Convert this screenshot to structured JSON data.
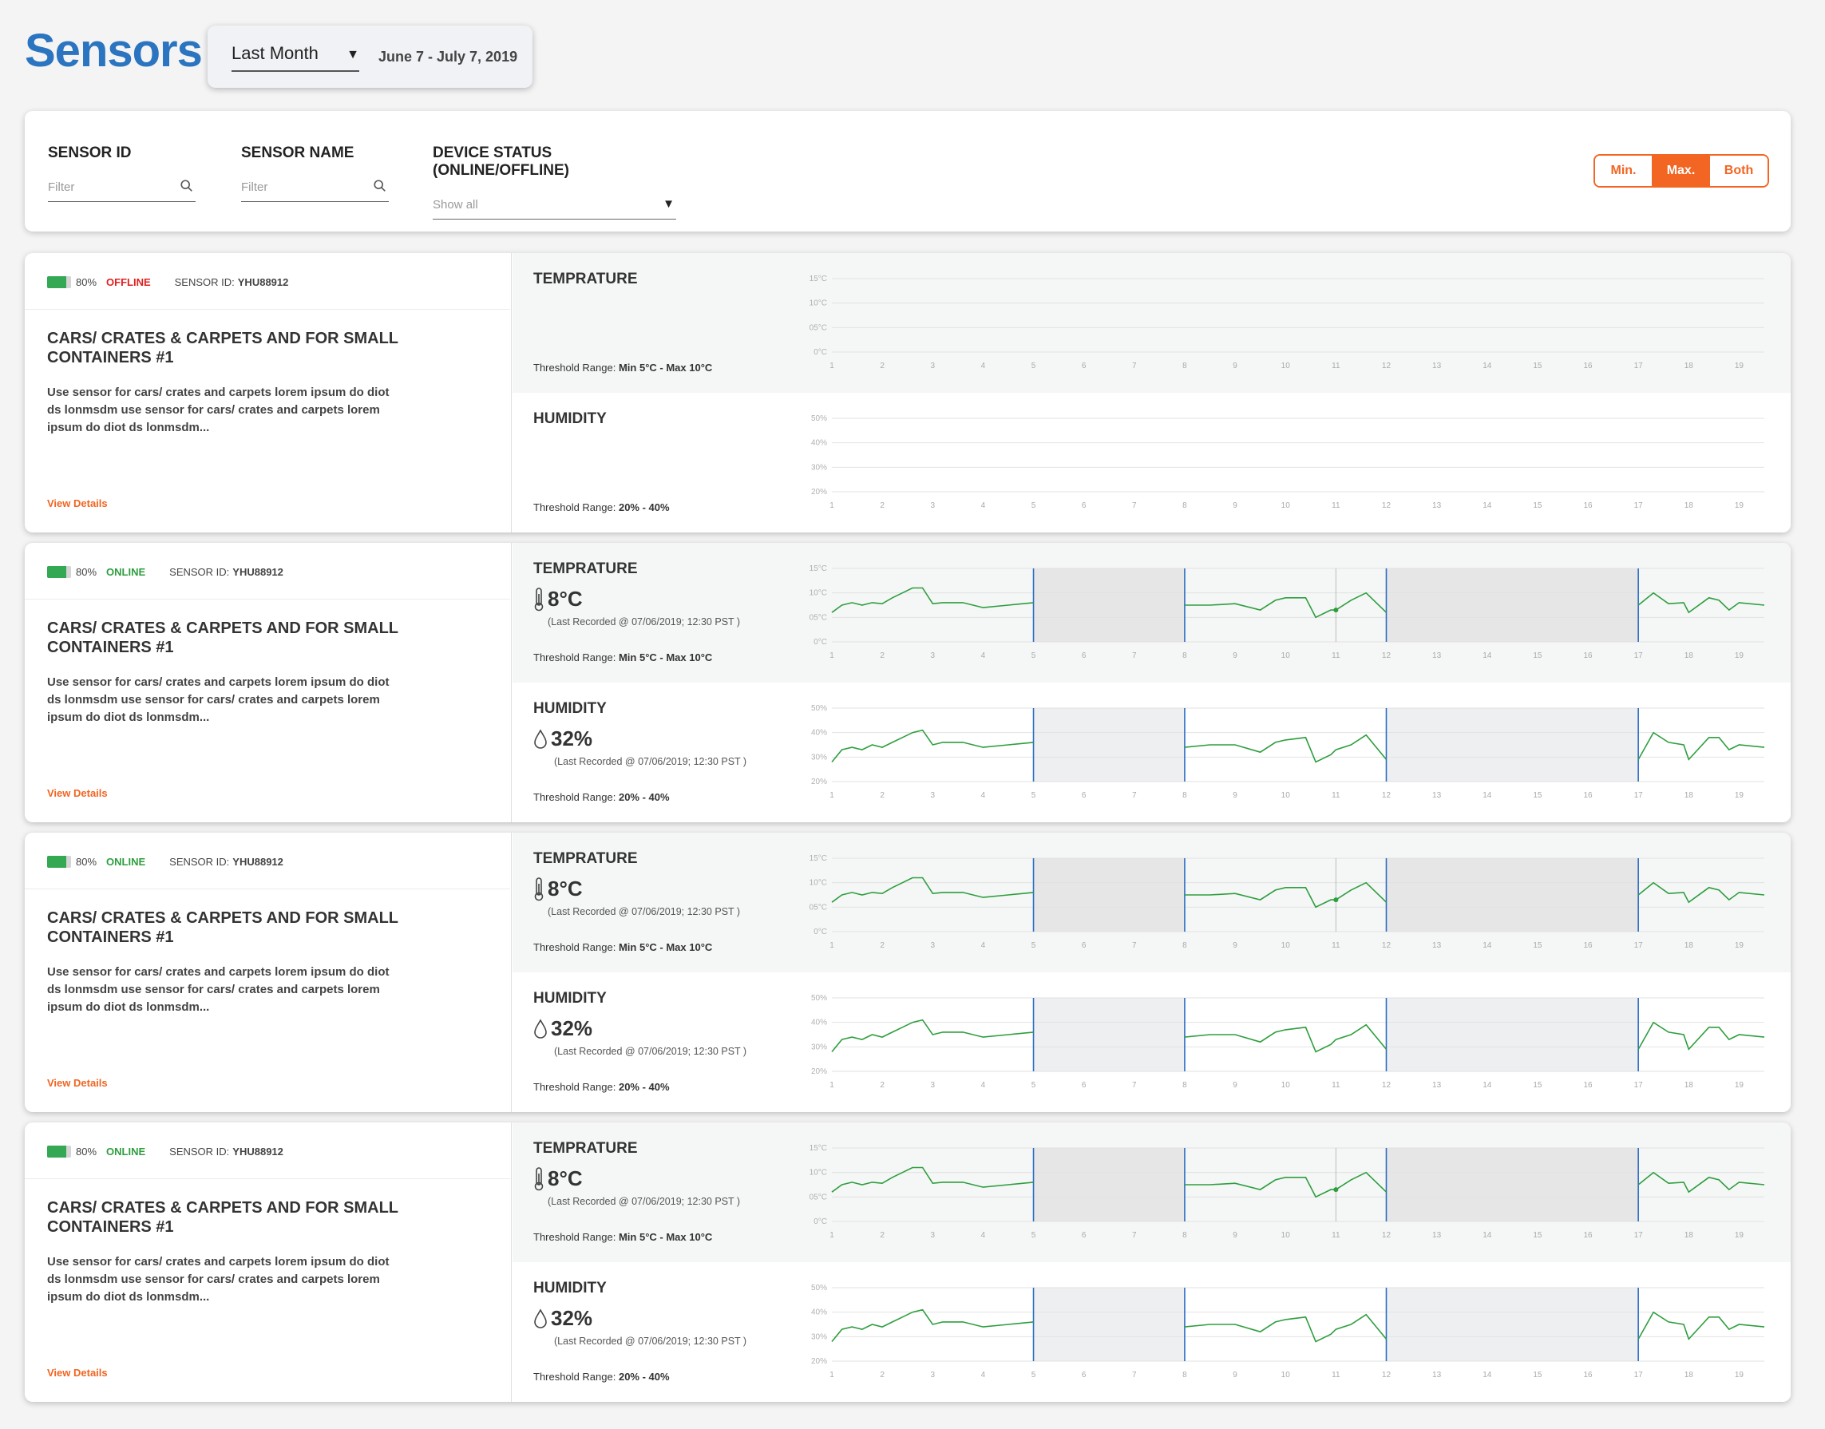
{
  "page": {
    "title": "Sensors"
  },
  "range": {
    "selected": "Last Month",
    "dates": "June 7 - July 7, 2019"
  },
  "filters": {
    "sensor_id": {
      "label": "SENSOR ID",
      "placeholder": "Filter"
    },
    "sensor_name": {
      "label": "SENSOR NAME",
      "placeholder": "Filter"
    },
    "device_status": {
      "label": "DEVICE STATUS (ONLINE/OFFLINE)",
      "value": "Show all"
    }
  },
  "toggle": {
    "options": [
      "Min.",
      "Max.",
      "Both"
    ],
    "active": "Max.",
    "accent_color": "#f26522"
  },
  "colors": {
    "online": "#2e9e3e",
    "offline": "#e02020",
    "line": "#2e9e3e",
    "marker": "#2b6cc4",
    "title": "#2b74c0"
  },
  "x_ticks": [
    "1",
    "2",
    "3",
    "4",
    "5",
    "6",
    "7",
    "8",
    "9",
    "10",
    "11",
    "12",
    "13",
    "14",
    "15",
    "16",
    "17",
    "18",
    "19"
  ],
  "temp_ticks": [
    "15°C",
    "10°C",
    "05°C",
    "0°C"
  ],
  "hum_ticks": [
    "50%",
    "40%",
    "30%",
    "20%"
  ],
  "sensors": [
    {
      "battery_pct": "80%",
      "battery_level": 0.8,
      "status": "OFFLINE",
      "sid_label": "SENSOR ID:",
      "sid_value": "YHU88912",
      "title": "CARS/ CRATES & CARPETS AND FOR SMALL CONTAINERS #1",
      "description": "Use sensor for cars/ crates and carpets lorem ipsum do diot ds lonmsdm use sensor for cars/ crates and carpets lorem ipsum do diot ds lonmsdm...",
      "link": "View Details",
      "temp": {
        "label": "TEMPRATURE",
        "value": "",
        "recorded": "",
        "threshold_label": "Threshold Range:",
        "threshold_value": "Min 5°C - Max 10°C"
      },
      "hum": {
        "label": "HUMIDITY",
        "value": "",
        "recorded": "",
        "threshold_label": "Threshold Range:",
        "threshold_value": "20% - 40%"
      },
      "has_data": false
    },
    {
      "battery_pct": "80%",
      "battery_level": 0.8,
      "status": "ONLINE",
      "sid_label": "SENSOR ID:",
      "sid_value": "YHU88912",
      "title": "CARS/ CRATES & CARPETS AND FOR SMALL CONTAINERS #1",
      "description": "Use sensor for cars/ crates and carpets lorem ipsum do diot ds lonmsdm use sensor for cars/ crates and carpets lorem ipsum do diot ds lonmsdm...",
      "link": "View Details",
      "temp": {
        "label": "TEMPRATURE",
        "value": "8°C",
        "recorded": "(Last Recorded @ 07/06/2019; 12:30 PST )",
        "threshold_label": "Threshold Range:",
        "threshold_value": "Min 5°C - Max 10°C"
      },
      "hum": {
        "label": "HUMIDITY",
        "value": "32%",
        "recorded": "(Last Recorded @ 07/06/2019; 12:30 PST )",
        "threshold_label": "Threshold Range:",
        "threshold_value": "20% - 40%"
      },
      "has_data": true
    },
    {
      "battery_pct": "80%",
      "battery_level": 0.8,
      "status": "ONLINE",
      "sid_label": "SENSOR ID:",
      "sid_value": "YHU88912",
      "title": "CARS/ CRATES & CARPETS AND FOR SMALL CONTAINERS #1",
      "description": "Use sensor for cars/ crates and carpets lorem ipsum do diot ds lonmsdm use sensor for cars/ crates and carpets lorem ipsum do diot ds lonmsdm...",
      "link": "View Details",
      "temp": {
        "label": "TEMPRATURE",
        "value": "8°C",
        "recorded": "(Last Recorded @ 07/06/2019; 12:30 PST )",
        "threshold_label": "Threshold Range:",
        "threshold_value": "Min 5°C - Max 10°C"
      },
      "hum": {
        "label": "HUMIDITY",
        "value": "32%",
        "recorded": "(Last Recorded @ 07/06/2019; 12:30 PST )",
        "threshold_label": "Threshold Range:",
        "threshold_value": "20% - 40%"
      },
      "has_data": true
    },
    {
      "battery_pct": "80%",
      "battery_level": 0.8,
      "status": "ONLINE",
      "sid_label": "SENSOR ID:",
      "sid_value": "YHU88912",
      "title": "CARS/ CRATES & CARPETS AND FOR SMALL CONTAINERS #1",
      "description": "Use sensor for cars/ crates and carpets lorem ipsum do diot ds lonmsdm use sensor for cars/ crates and carpets lorem ipsum do diot ds lonmsdm...",
      "link": "View Details",
      "temp": {
        "label": "TEMPRATURE",
        "value": "8°C",
        "recorded": "(Last Recorded @ 07/06/2019; 12:30 PST )",
        "threshold_label": "Threshold Range:",
        "threshold_value": "Min 5°C - Max 10°C"
      },
      "hum": {
        "label": "HUMIDITY",
        "value": "32%",
        "recorded": "(Last Recorded @ 07/06/2019; 12:30 PST )",
        "threshold_label": "Threshold Range:",
        "threshold_value": "20% - 40%"
      },
      "has_data": true
    }
  ],
  "chart_data": [
    {
      "type": "line",
      "ylabel": "Temperature",
      "ylim": [
        0,
        15
      ],
      "x_range": [
        1,
        19.5
      ],
      "gap_ranges": [
        [
          5,
          8
        ],
        [
          12,
          17
        ]
      ],
      "highlight_x": 11,
      "x": [
        1,
        1.2,
        1.4,
        1.6,
        1.8,
        2,
        2.2,
        2.4,
        2.6,
        2.8,
        3,
        3.2,
        3.4,
        3.6,
        4,
        4.5,
        5,
        8,
        8.5,
        9,
        9.5,
        9.8,
        10,
        10.4,
        10.6,
        10.9,
        11,
        11.3,
        11.6,
        12,
        17,
        17.3,
        17.6,
        17.9,
        18,
        18.4,
        18.6,
        18.8,
        19,
        19.5
      ],
      "values": [
        6,
        7.5,
        8,
        7.5,
        8,
        7.8,
        9,
        10,
        11,
        11,
        7.8,
        8,
        8,
        8,
        7,
        7.5,
        8,
        7.5,
        7.5,
        7.8,
        6.5,
        8.5,
        9,
        9,
        5,
        6.5,
        6.5,
        8.5,
        10,
        6,
        7.5,
        10,
        7.8,
        8,
        6,
        9,
        8.5,
        6.5,
        8,
        7.5
      ],
      "series": [
        {
          "name": "",
          "marker_x": 11,
          "marker_y": 6.5
        }
      ]
    },
    {
      "type": "line",
      "ylabel": "Humidity",
      "ylim": [
        20,
        50
      ],
      "x_range": [
        1,
        19.5
      ],
      "gap_ranges": [
        [
          5,
          8
        ],
        [
          12,
          17
        ]
      ],
      "x": [
        1,
        1.2,
        1.4,
        1.6,
        1.8,
        2,
        2.2,
        2.4,
        2.6,
        2.8,
        3,
        3.2,
        3.4,
        3.6,
        4,
        4.5,
        5,
        8,
        8.5,
        9,
        9.5,
        9.8,
        10,
        10.4,
        10.6,
        10.9,
        11,
        11.3,
        11.6,
        12,
        17,
        17.3,
        17.6,
        17.9,
        18,
        18.4,
        18.6,
        18.8,
        19,
        19.5
      ],
      "values": [
        28,
        33,
        34,
        33,
        35,
        34,
        36,
        38,
        40,
        41,
        35,
        36,
        36,
        36,
        34,
        35,
        36,
        34,
        35,
        35,
        32,
        36,
        37,
        38,
        28,
        31,
        33,
        35,
        39,
        29,
        29,
        40,
        36,
        35,
        29,
        38,
        38,
        33,
        35,
        34
      ]
    }
  ]
}
